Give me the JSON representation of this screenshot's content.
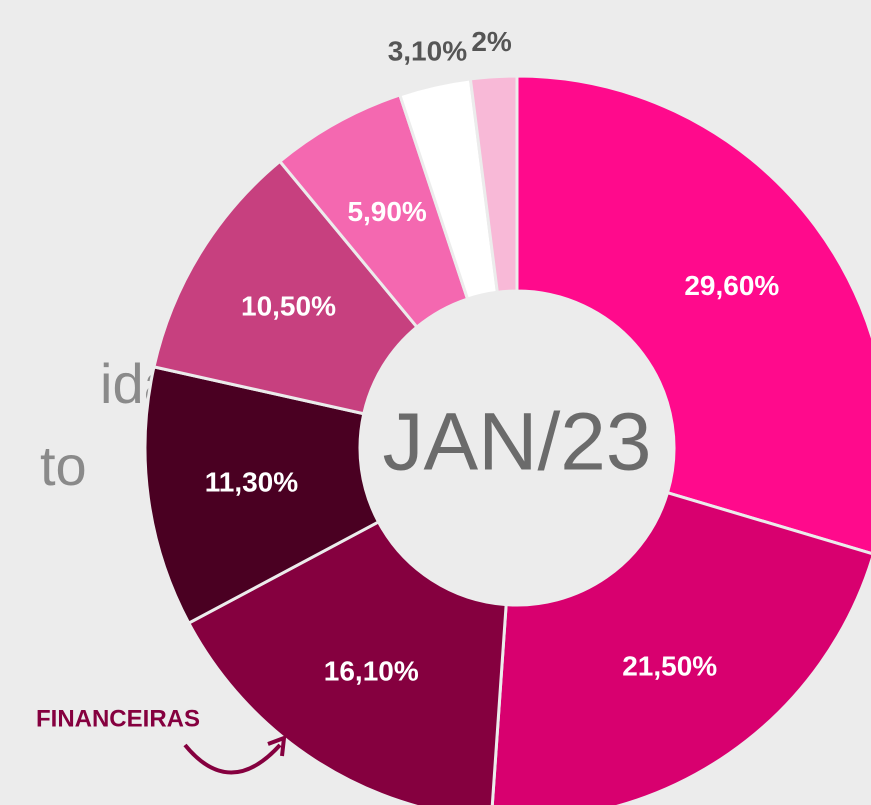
{
  "chart_data": {
    "type": "donut",
    "center_label": "JAN/23",
    "categories": [
      null,
      null,
      null,
      null,
      null,
      null,
      null,
      null
    ],
    "values": [
      29.6,
      21.5,
      16.1,
      11.3,
      10.5,
      5.9,
      3.1,
      2
    ],
    "value_labels": [
      "29,60%",
      "21,50%",
      "16,10%",
      "11,30%",
      "10,50%",
      "5,90%",
      "3,10%",
      "2%"
    ],
    "colors": [
      "#ff0a8c",
      "#d8006f",
      "#85003f",
      "#4a0022",
      "#c7407f",
      "#f468b0",
      "#ffffff",
      "#f8b9d7"
    ],
    "annotations": [
      "FINANCEIRAS"
    ],
    "side_text": [
      "idas",
      "to"
    ]
  }
}
